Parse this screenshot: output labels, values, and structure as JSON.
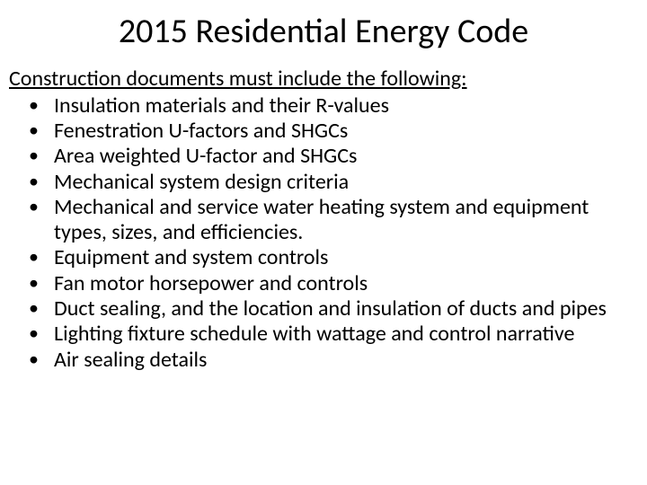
{
  "title": "2015 Residential Energy Code",
  "intro": "Construction documents must include the following:",
  "bullets": [
    "Insulation materials and their R-values",
    "Fenestration U-factors and SHGCs",
    "Area weighted U-factor and SHGCs",
    "Mechanical system design criteria",
    "Mechanical and service water heating system and equipment types, sizes, and efficiencies.",
    "Equipment and system controls",
    "Fan motor horsepower and controls",
    "Duct sealing, and the location and insulation of ducts and pipes",
    "Lighting fixture schedule with wattage and control narrative",
    "Air sealing details"
  ],
  "colors": {
    "background": "#ffffff",
    "text": "#000000"
  },
  "typography": {
    "title_fontsize": 38,
    "body_fontsize": 24,
    "font_family": "Calibri"
  }
}
